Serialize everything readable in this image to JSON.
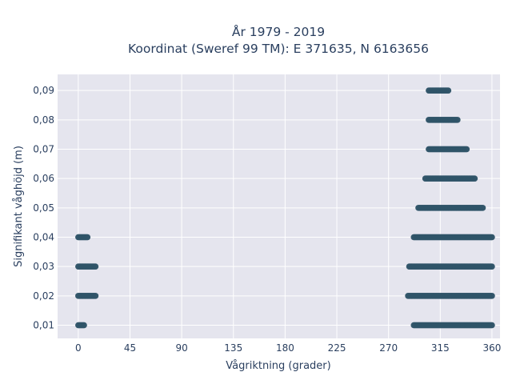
{
  "chart_data": {
    "type": "scatter",
    "title": "År 1979 - 2019",
    "subtitle": "Koordinat (Sweref 99 TM): E 371635, N 6163656",
    "xlabel": "Vågriktning (grader)",
    "ylabel": "Signifikant våghöjd (m)",
    "xlim": [
      -18,
      367
    ],
    "ylim": [
      0.0055,
      0.0955
    ],
    "x_ticks": [
      0,
      45,
      90,
      135,
      180,
      225,
      270,
      315,
      360
    ],
    "x_tick_labels": [
      "0",
      "45",
      "90",
      "135",
      "180",
      "225",
      "270",
      "315",
      "360"
    ],
    "y_ticks": [
      0.01,
      0.02,
      0.03,
      0.04,
      0.05,
      0.06,
      0.07,
      0.08,
      0.09
    ],
    "y_tick_labels": [
      "0,01",
      "0,02",
      "0,03",
      "0,04",
      "0,05",
      "0,06",
      "0,07",
      "0,08",
      "0,09"
    ],
    "grid": true,
    "marker_color": "#2f5468",
    "background_color": "#e5e5ee",
    "ranges": [
      {
        "y": 0.01,
        "x_from": 0,
        "x_to": 5
      },
      {
        "y": 0.02,
        "x_from": 0,
        "x_to": 15
      },
      {
        "y": 0.03,
        "x_from": 0,
        "x_to": 15
      },
      {
        "y": 0.04,
        "x_from": 0,
        "x_to": 8
      },
      {
        "y": 0.01,
        "x_from": 292,
        "x_to": 360
      },
      {
        "y": 0.02,
        "x_from": 287,
        "x_to": 360
      },
      {
        "y": 0.03,
        "x_from": 288,
        "x_to": 360
      },
      {
        "y": 0.04,
        "x_from": 292,
        "x_to": 360
      },
      {
        "y": 0.05,
        "x_from": 296,
        "x_to": 352
      },
      {
        "y": 0.06,
        "x_from": 302,
        "x_to": 345
      },
      {
        "y": 0.07,
        "x_from": 305,
        "x_to": 338
      },
      {
        "y": 0.08,
        "x_from": 305,
        "x_to": 330
      },
      {
        "y": 0.09,
        "x_from": 305,
        "x_to": 322
      }
    ]
  }
}
